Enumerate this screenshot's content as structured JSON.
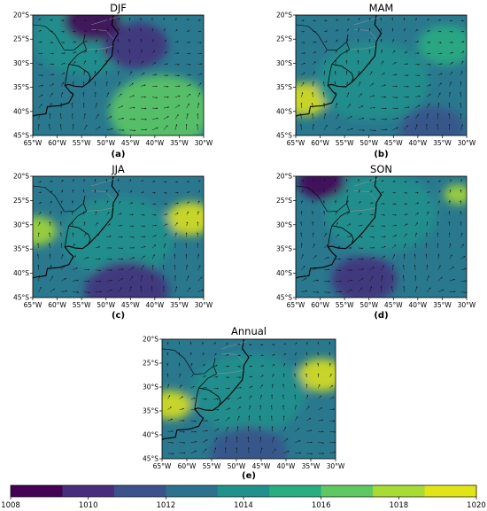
{
  "panels": [
    {
      "id": "a",
      "title": "DJF",
      "letter": "(a)",
      "highs": [
        [
          40,
          41.5,
          1,
          0.9
        ]
      ],
      "lows": [
        [
          44,
          27,
          0.9,
          0.65
        ],
        [
          58,
          22,
          0.85,
          0.75
        ]
      ]
    },
    {
      "id": "b",
      "title": "MAM",
      "letter": "(b)",
      "highs": [
        [
          32,
          26,
          0.9,
          0.65
        ],
        [
          64,
          37,
          0.85,
          0.75
        ]
      ],
      "lows": [
        [
          34,
          45,
          0.65,
          0.85
        ]
      ]
    },
    {
      "id": "c",
      "title": "JJA",
      "letter": "(c)",
      "highs": [
        [
          31,
          27.5,
          0.9,
          0.85
        ],
        [
          64,
          34,
          0.85,
          0.8
        ]
      ],
      "lows": [
        [
          44,
          44.8,
          0.8,
          0.75
        ]
      ]
    },
    {
      "id": "d",
      "title": "SON",
      "letter": "(d)",
      "highs": [
        [
          30.5,
          25.5,
          0.8,
          0.65
        ],
        [
          64,
          36,
          0.55,
          0.65
        ]
      ],
      "lows": [
        [
          50,
          43.5,
          0.9,
          0.8
        ],
        [
          58,
          21.5,
          0.75,
          0.75
        ]
      ]
    },
    {
      "id": "e",
      "title": "Annual",
      "letter": "(e)",
      "highs": [
        [
          31,
          27,
          0.9,
          0.9
        ],
        [
          64,
          37,
          0.6,
          0.7
        ]
      ],
      "lows": [
        [
          44,
          44.5,
          0.55,
          0.85
        ]
      ]
    }
  ],
  "axes": {
    "lon_ticks": [
      "65°W",
      "60°W",
      "55°W",
      "50°W",
      "45°W",
      "40°W",
      "35°W",
      "30°W"
    ],
    "lat_ticks": [
      "20°S",
      "25°S",
      "30°S",
      "35°S",
      "40°S",
      "45°S"
    ],
    "lon_range": [
      -65,
      -30
    ],
    "lat_range": [
      -45,
      -20
    ]
  },
  "colorbar": {
    "ticks": [
      "1008",
      "1010",
      "1012",
      "1014",
      "1016",
      "1018",
      "1020"
    ],
    "range": [
      1008,
      1020
    ],
    "colors": [
      "#440154",
      "#472d7b",
      "#3b528b",
      "#2c728e",
      "#21918c",
      "#28ae80",
      "#5ec962",
      "#a8db34",
      "#e3e418"
    ]
  }
}
